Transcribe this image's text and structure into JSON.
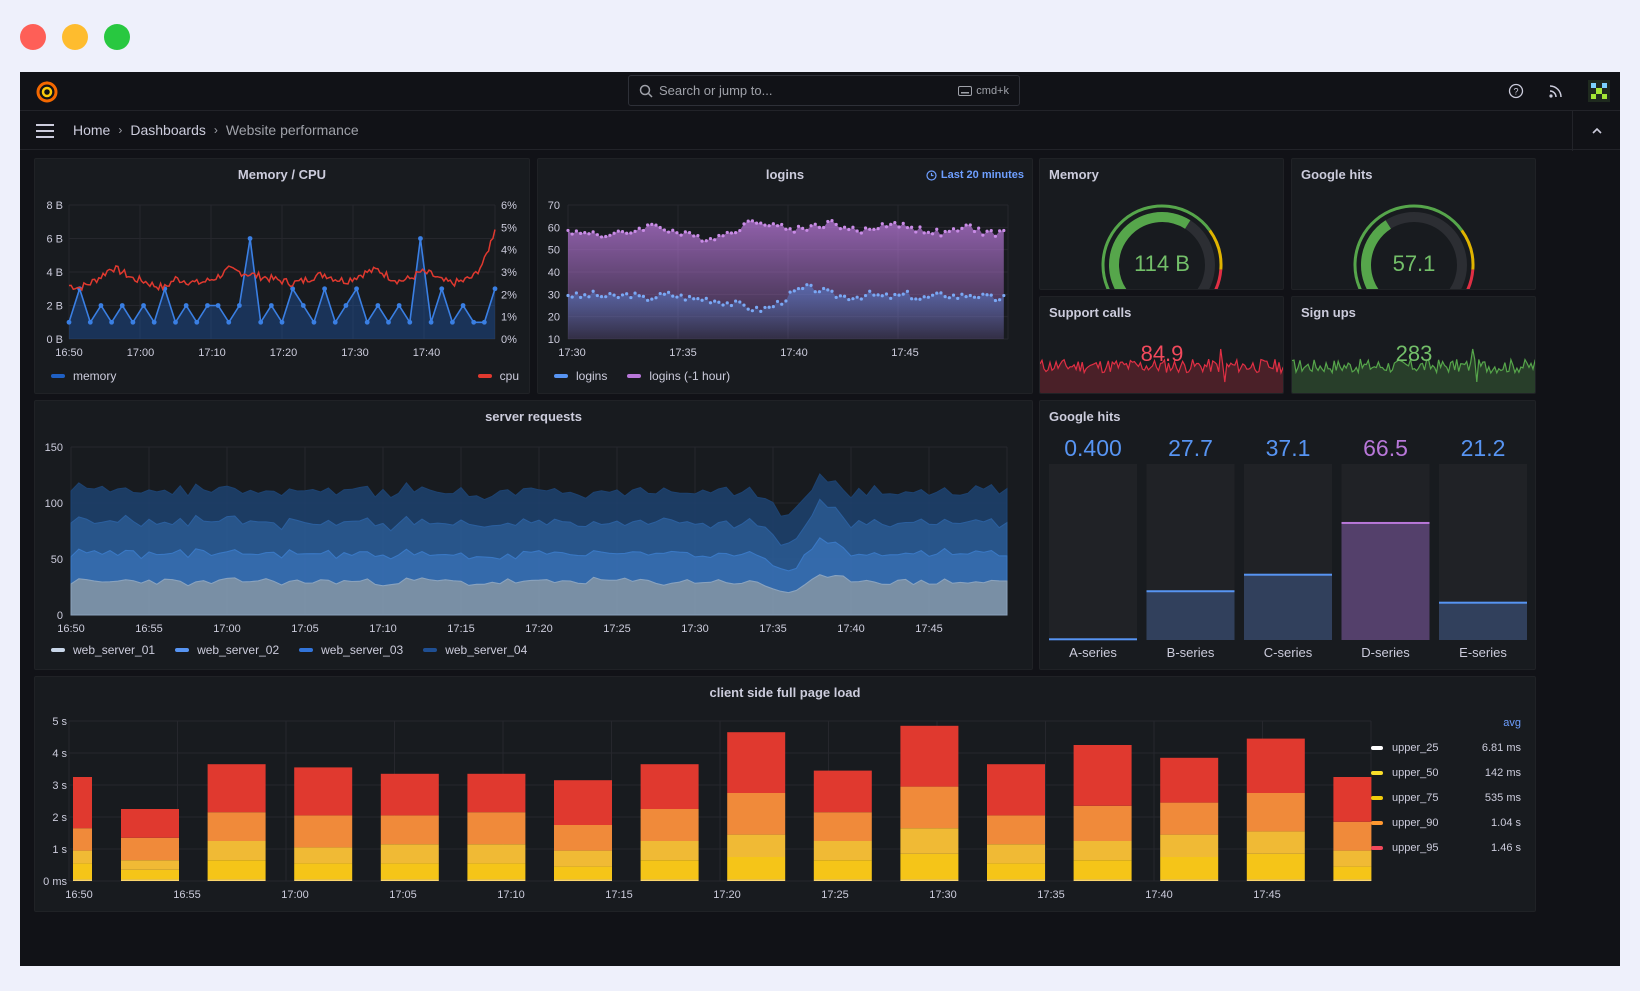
{
  "window": {
    "controls": [
      "close",
      "minimize",
      "maximize"
    ]
  },
  "topbar": {
    "search_placeholder": "Search or jump to...",
    "shortcut": "cmd+k",
    "icons": [
      "grafana-logo-icon",
      "help-icon",
      "news-rss-icon",
      "user-avatar-icon"
    ]
  },
  "breadcrumb": {
    "items": [
      "Home",
      "Dashboards",
      "Website performance"
    ]
  },
  "colors": {
    "background": "#111217",
    "panel": "#181b1f",
    "memory": "#1f60c4",
    "cpu": "#e0392f",
    "logins": "#5794f2",
    "logins_1h": "#b877d9",
    "green": "#56a64b",
    "red": "#e02f44",
    "blue_value": "#5794f2",
    "purple_value": "#b877d9"
  },
  "panels": {
    "memory_cpu": {
      "title": "Memory / CPU",
      "legend": [
        "memory",
        "cpu"
      ]
    },
    "logins": {
      "title": "logins",
      "time_range": "Last 20 minutes",
      "legend": [
        "logins",
        "logins (-1 hour)"
      ]
    },
    "memory_gauge": {
      "title": "Memory",
      "value": "114 B",
      "fraction": 0.62
    },
    "google_hits_gauge": {
      "title": "Google hits",
      "value": "57.1",
      "fraction": 0.38
    },
    "support_calls": {
      "title": "Support calls",
      "value": "84.9"
    },
    "sign_ups": {
      "title": "Sign ups",
      "value": "283"
    },
    "server_requests": {
      "title": "server requests",
      "legend": [
        "web_server_01",
        "web_server_02",
        "web_server_03",
        "web_server_04"
      ]
    },
    "google_hits_bars": {
      "title": "Google hits"
    },
    "page_load": {
      "title": "client side full page load",
      "legend_header": "avg",
      "legend": [
        {
          "name": "upper_25",
          "avg": "6.81 ms",
          "color": "#ffffff"
        },
        {
          "name": "upper_50",
          "avg": "142 ms",
          "color": "#fade2a"
        },
        {
          "name": "upper_75",
          "avg": "535 ms",
          "color": "#f2cc0c"
        },
        {
          "name": "upper_90",
          "avg": "1.04 s",
          "color": "#ff9830"
        },
        {
          "name": "upper_95",
          "avg": "1.46 s",
          "color": "#f2495c"
        }
      ]
    }
  },
  "chart_data": [
    {
      "type": "line",
      "title": "Memory / CPU",
      "x_ticks": [
        "16:50",
        "17:00",
        "17:10",
        "17:20",
        "17:30",
        "17:40"
      ],
      "y_ticks": [
        "0 B",
        "2 B",
        "4 B",
        "6 B",
        "8 B"
      ],
      "y2_ticks": [
        "0%",
        "1%",
        "2%",
        "3%",
        "4%",
        "5%",
        "6%"
      ],
      "ylim": [
        0,
        8
      ],
      "y2lim": [
        0,
        6
      ],
      "series": [
        {
          "name": "memory",
          "axis": "left",
          "values": [
            1,
            3,
            1,
            2,
            1,
            2,
            1,
            2,
            1,
            3,
            1,
            2,
            1,
            2,
            2,
            1,
            2,
            6,
            1,
            2,
            1,
            3,
            2,
            1,
            3,
            1,
            2,
            3,
            1,
            2,
            1,
            2,
            1,
            6,
            1,
            3,
            1,
            2,
            1,
            1,
            3
          ]
        },
        {
          "name": "cpu",
          "axis": "right",
          "values": [
            2.4,
            2.3,
            2.5,
            2.8,
            3.2,
            3.0,
            2.7,
            2.6,
            2.4,
            2.3,
            2.7,
            2.6,
            2.5,
            2.6,
            2.8,
            3.1,
            3.0,
            2.9,
            2.8,
            2.7,
            2.6,
            2.5,
            2.6,
            2.8,
            2.9,
            2.7,
            2.6,
            2.8,
            3.0,
            3.1,
            2.8,
            2.6,
            2.7,
            3.0,
            2.9,
            2.6,
            2.5,
            2.6,
            2.8,
            3.5,
            4.9
          ]
        }
      ]
    },
    {
      "type": "area",
      "title": "logins",
      "x_ticks": [
        "17:30",
        "17:35",
        "17:40",
        "17:45"
      ],
      "y_ticks": [
        "10",
        "20",
        "30",
        "40",
        "50",
        "60",
        "70"
      ],
      "ylim": [
        10,
        70
      ],
      "series": [
        {
          "name": "logins",
          "values": [
            30,
            29,
            30,
            29,
            29,
            30,
            28,
            29,
            30,
            29,
            28,
            28,
            27,
            26,
            25,
            23,
            24,
            27,
            31,
            33,
            32,
            30,
            29,
            29,
            30,
            29,
            29,
            30,
            28,
            29,
            30,
            29,
            30,
            29,
            28,
            29
          ]
        },
        {
          "name": "logins (-1 hour)",
          "values": [
            59,
            57,
            58,
            56,
            57,
            58,
            60,
            61,
            59,
            57,
            56,
            55,
            56,
            58,
            61,
            63,
            62,
            60,
            59,
            60,
            61,
            62,
            60,
            58,
            59,
            61,
            62,
            60,
            59,
            58,
            57,
            59,
            60,
            58,
            57,
            59
          ]
        }
      ]
    },
    {
      "type": "area",
      "title": "server requests",
      "stacked": true,
      "x_ticks": [
        "16:50",
        "16:55",
        "17:00",
        "17:05",
        "17:10",
        "17:15",
        "17:20",
        "17:25",
        "17:30",
        "17:35",
        "17:40",
        "17:45"
      ],
      "y_ticks": [
        "0",
        "50",
        "100",
        "150"
      ],
      "ylim": [
        0,
        150
      ],
      "series": [
        {
          "name": "web_server_01",
          "values": [
            30,
            29,
            31,
            30,
            28,
            30,
            31,
            29,
            30,
            30,
            29,
            31,
            30,
            28,
            30,
            29,
            30,
            31,
            30,
            29,
            30,
            30,
            28,
            20,
            33,
            32,
            30,
            29,
            30,
            29,
            30
          ]
        },
        {
          "name": "web_server_02",
          "values": [
            25,
            26,
            24,
            25,
            27,
            25,
            24,
            26,
            25,
            25,
            26,
            24,
            25,
            26,
            24,
            25,
            26,
            24,
            25,
            26,
            25,
            24,
            25,
            18,
            32,
            26,
            24,
            25,
            26,
            25,
            24
          ]
        },
        {
          "name": "web_server_03",
          "values": [
            28,
            27,
            29,
            28,
            27,
            29,
            28,
            27,
            28,
            29,
            28,
            27,
            28,
            29,
            27,
            28,
            29,
            27,
            28,
            29,
            28,
            27,
            28,
            22,
            33,
            28,
            27,
            28,
            29,
            28,
            27
          ]
        },
        {
          "name": "web_server_04",
          "values": [
            28,
            29,
            27,
            28,
            29,
            27,
            28,
            29,
            28,
            27,
            28,
            29,
            28,
            27,
            29,
            28,
            27,
            29,
            28,
            27,
            28,
            29,
            27,
            26,
            24,
            27,
            28,
            29,
            27,
            28,
            29
          ]
        }
      ]
    },
    {
      "type": "bar",
      "title": "Google hits",
      "categories": [
        "A-series",
        "B-series",
        "C-series",
        "D-series",
        "E-series"
      ],
      "values": [
        0.4,
        27.7,
        37.1,
        66.5,
        21.2
      ],
      "labels": [
        "0.400",
        "27.7",
        "37.1",
        "66.5",
        "21.2"
      ],
      "ylim": [
        0,
        100
      ]
    },
    {
      "type": "bar",
      "title": "client side full page load",
      "stacked": true,
      "x_ticks": [
        "16:50",
        "16:55",
        "17:00",
        "17:05",
        "17:10",
        "17:15",
        "17:20",
        "17:25",
        "17:30",
        "17:35",
        "17:40",
        "17:45"
      ],
      "y_ticks": [
        "0 ms",
        "1 s",
        "2 s",
        "3 s",
        "4 s",
        "5 s"
      ],
      "ylim": [
        0,
        5
      ],
      "series": [
        {
          "name": "upper_25",
          "values": [
            0.05,
            0.05,
            0.05,
            0.05,
            0.05,
            0.05,
            0.05,
            0.05,
            0.05,
            0.05,
            0.05,
            0.05,
            0.05,
            0.05,
            0.05,
            0.05
          ]
        },
        {
          "name": "upper_50",
          "values": [
            0.5,
            0.3,
            0.6,
            0.5,
            0.5,
            0.5,
            0.4,
            0.6,
            0.7,
            0.6,
            0.8,
            0.5,
            0.6,
            0.7,
            0.8,
            0.4
          ]
        },
        {
          "name": "upper_75",
          "values": [
            0.4,
            0.3,
            0.6,
            0.5,
            0.6,
            0.6,
            0.5,
            0.6,
            0.7,
            0.6,
            0.8,
            0.6,
            0.6,
            0.7,
            0.7,
            0.5
          ]
        },
        {
          "name": "upper_90",
          "values": [
            0.7,
            0.7,
            0.9,
            1.0,
            0.9,
            1.0,
            0.8,
            1.0,
            1.3,
            0.9,
            1.3,
            0.9,
            1.1,
            1.0,
            1.2,
            0.9
          ]
        },
        {
          "name": "upper_95",
          "values": [
            1.6,
            0.9,
            1.5,
            1.5,
            1.3,
            1.2,
            1.4,
            1.4,
            1.9,
            1.3,
            1.9,
            1.6,
            1.9,
            1.4,
            1.7,
            1.4
          ]
        }
      ]
    }
  ]
}
